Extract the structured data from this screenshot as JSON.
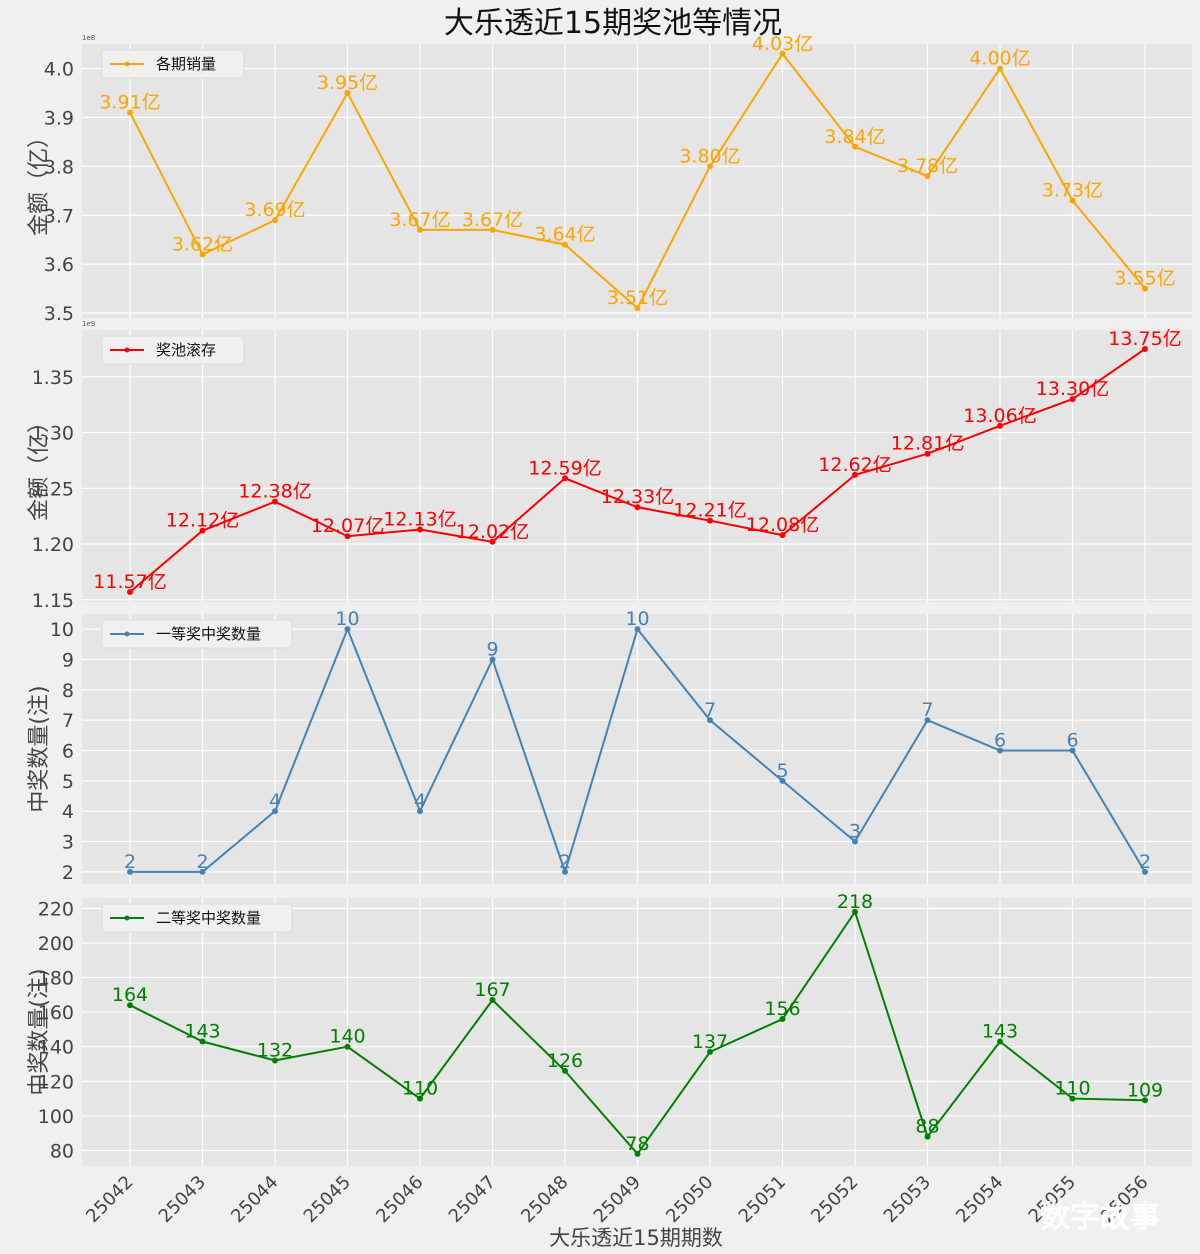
{
  "title": "大乐透近15期奖池等情况",
  "xlabel": "大乐透近15期期数",
  "watermark": "数字故事",
  "chart_data": [
    {
      "type": "line",
      "legend": "各期销量",
      "ylabel": "金额（亿）",
      "color": "#FFA500",
      "scale_label": "1e8",
      "ylim": [
        3.49,
        4.05
      ],
      "yticks": [
        3.5,
        3.6,
        3.7,
        3.8,
        3.9,
        4.0
      ],
      "ytick_labels": [
        "3.5",
        "3.6",
        "3.7",
        "3.8",
        "3.9",
        "4.0"
      ],
      "x": [
        "25042",
        "25043",
        "25044",
        "25045",
        "25046",
        "25047",
        "25048",
        "25049",
        "25050",
        "25051",
        "25052",
        "25053",
        "25054",
        "25055",
        "25056"
      ],
      "values": [
        3.91,
        3.62,
        3.69,
        3.95,
        3.67,
        3.67,
        3.64,
        3.51,
        3.8,
        4.03,
        3.84,
        3.78,
        4.0,
        3.73,
        3.55
      ],
      "labels": [
        "3.91亿",
        "3.62亿",
        "3.69亿",
        "3.95亿",
        "3.67亿",
        "3.67亿",
        "3.64亿",
        "3.51亿",
        "3.80亿",
        "4.03亿",
        "3.84亿",
        "3.78亿",
        "4.00亿",
        "3.73亿",
        "3.55亿"
      ]
    },
    {
      "type": "line",
      "legend": "奖池滚存",
      "ylabel": "金额（亿）",
      "color": "#FF0000",
      "scale_label": "1e9",
      "ylim": [
        1.148,
        1.392
      ],
      "yticks": [
        1.15,
        1.2,
        1.25,
        1.3,
        1.35
      ],
      "ytick_labels": [
        "1.15",
        "1.20",
        "1.25",
        "1.30",
        "1.35"
      ],
      "x": [
        "25042",
        "25043",
        "25044",
        "25045",
        "25046",
        "25047",
        "25048",
        "25049",
        "25050",
        "25051",
        "25052",
        "25053",
        "25054",
        "25055",
        "25056"
      ],
      "values": [
        1.157,
        1.212,
        1.238,
        1.207,
        1.213,
        1.202,
        1.259,
        1.233,
        1.221,
        1.208,
        1.262,
        1.281,
        1.306,
        1.33,
        1.375
      ],
      "labels": [
        "11.57亿",
        "12.12亿",
        "12.38亿",
        "12.07亿",
        "12.13亿",
        "12.02亿",
        "12.59亿",
        "12.33亿",
        "12.21亿",
        "12.08亿",
        "12.62亿",
        "12.81亿",
        "13.06亿",
        "13.30亿",
        "13.75亿"
      ]
    },
    {
      "type": "line",
      "legend": "一等奖中奖数量",
      "ylabel": "中奖数量(注)",
      "color": "#4682B4",
      "ylim": [
        1.6,
        10.5
      ],
      "yticks": [
        2,
        3,
        4,
        5,
        6,
        7,
        8,
        9,
        10
      ],
      "ytick_labels": [
        "2",
        "3",
        "4",
        "5",
        "6",
        "7",
        "8",
        "9",
        "10"
      ],
      "x": [
        "25042",
        "25043",
        "25044",
        "25045",
        "25046",
        "25047",
        "25048",
        "25049",
        "25050",
        "25051",
        "25052",
        "25053",
        "25054",
        "25055",
        "25056"
      ],
      "values": [
        2,
        2,
        4,
        10,
        4,
        9,
        2,
        10,
        7,
        5,
        3,
        7,
        6,
        6,
        2
      ],
      "labels": [
        "2",
        "2",
        "4",
        "10",
        "4",
        "9",
        "2",
        "10",
        "7",
        "5",
        "3",
        "7",
        "6",
        "6",
        "2"
      ]
    },
    {
      "type": "line",
      "legend": "二等奖中奖数量",
      "ylabel": "中奖数量(注)",
      "color": "#008000",
      "ylim": [
        71,
        226
      ],
      "yticks": [
        80,
        100,
        120,
        140,
        160,
        180,
        200,
        220
      ],
      "ytick_labels": [
        "80",
        "100",
        "120",
        "140",
        "160",
        "180",
        "200",
        "220"
      ],
      "x": [
        "25042",
        "25043",
        "25044",
        "25045",
        "25046",
        "25047",
        "25048",
        "25049",
        "25050",
        "25051",
        "25052",
        "25053",
        "25054",
        "25055",
        "25056"
      ],
      "values": [
        164,
        143,
        132,
        140,
        110,
        167,
        126,
        78,
        137,
        156,
        218,
        88,
        143,
        110,
        109
      ],
      "labels": [
        "164",
        "143",
        "132",
        "140",
        "110",
        "167",
        "126",
        "78",
        "137",
        "156",
        "218",
        "88",
        "143",
        "110",
        "109"
      ]
    }
  ]
}
